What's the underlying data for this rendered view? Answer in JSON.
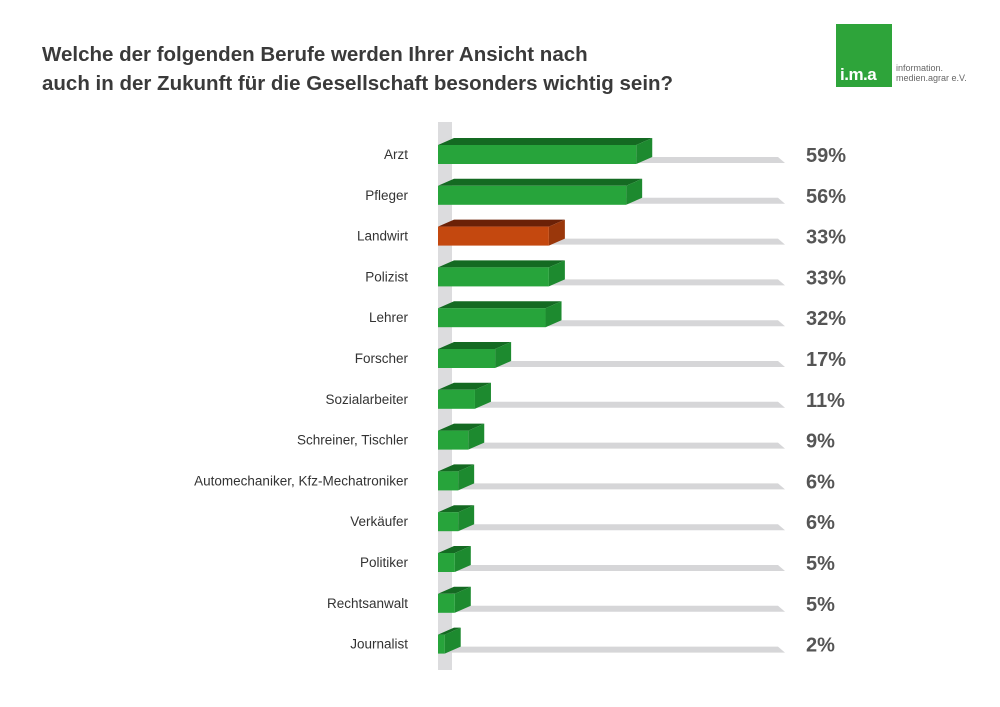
{
  "title_line1": "Welche der folgenden Berufe werden Ihrer Ansicht nach",
  "title_line2": "auch in der Zukunft für die Gesellschaft besonders wichtig sein?",
  "logo": {
    "mark": "i.m.a",
    "line1": "information.",
    "line2": "medien.agrar e.V."
  },
  "colors": {
    "green": "#27a43b",
    "green_top": "#146a22",
    "green_side": "#1d8a2f",
    "highlight": "#c4480f",
    "highlight_top": "#6b2107",
    "highlight_side": "#9a370b",
    "floor": "#d6d6d8"
  },
  "chart_data": {
    "type": "bar",
    "orientation": "horizontal",
    "title": "Welche der folgenden Berufe werden Ihrer Ansicht nach auch in der Zukunft für die Gesellschaft besonders wichtig sein?",
    "unit": "%",
    "categories": [
      "Arzt",
      "Pfleger",
      "Landwirt",
      "Polizist",
      "Lehrer",
      "Forscher",
      "Sozialarbeiter",
      "Schreiner, Tischler",
      "Automechaniker, Kfz-Mechatroniker",
      "Verkäufer",
      "Politiker",
      "Rechtsanwalt",
      "Journalist"
    ],
    "values": [
      59,
      56,
      33,
      33,
      32,
      17,
      11,
      9,
      6,
      6,
      5,
      5,
      2
    ],
    "labels": [
      "59%",
      "56%",
      "33%",
      "33%",
      "32%",
      "17%",
      "11%",
      "9%",
      "6%",
      "6%",
      "5%",
      "5%",
      "2%"
    ],
    "highlighted": [
      "Landwirt"
    ],
    "xlim": [
      0,
      100
    ]
  }
}
